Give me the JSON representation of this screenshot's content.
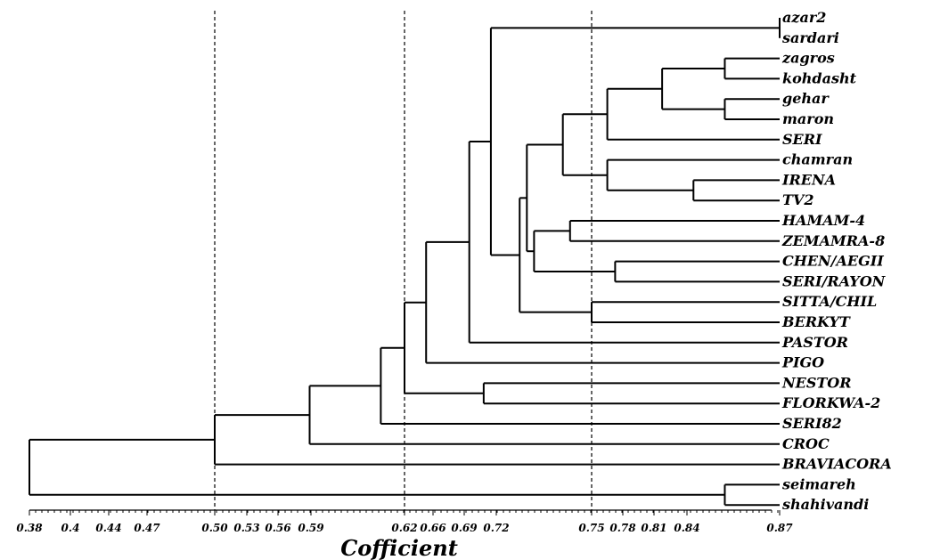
{
  "chart_data": {
    "type": "dendrogram",
    "xlabel": "Cofficient",
    "x_ticks": [
      "0.38",
      "0.4",
      "0.44",
      "0.47",
      "0.50",
      "0.53",
      "0.56",
      "0.59",
      "0.62",
      "0.66",
      "0.69",
      "0.72",
      "0.75",
      "0.78",
      "0.81",
      "0.84",
      "0.87"
    ],
    "cut_lines": [
      0.5,
      0.62,
      0.75
    ],
    "leaves": [
      "azar2",
      "sardari",
      "zagros",
      "kohdasht",
      "gehar",
      "maron",
      "SERI",
      "chamran",
      "IRENA",
      "TV2",
      "HAMAM-4",
      "ZEMAMRA-8",
      "CHEN/AEGII",
      "SERI/RAYON",
      "SITTA/CHIL",
      "BERKYT",
      "PASTOR",
      "PIGO",
      "NESTOR",
      "FLORKWA-2",
      "SERI82",
      "CROC",
      "BRAVIACORA",
      "seimareh",
      "shahivandi"
    ],
    "merges": [
      {
        "id": "m1",
        "a": "azar2",
        "b": "sardari",
        "h": 0.87
      },
      {
        "id": "m2",
        "a": "zagros",
        "b": "kohdasht",
        "h": 0.835
      },
      {
        "id": "m3",
        "a": "gehar",
        "b": "maron",
        "h": 0.835
      },
      {
        "id": "m4",
        "a": "m2",
        "b": "m3",
        "h": 0.795
      },
      {
        "id": "m5",
        "a": "m4",
        "b": "SERI",
        "h": 0.76
      },
      {
        "id": "m6",
        "a": "IRENA",
        "b": "TV2",
        "h": 0.815
      },
      {
        "id": "m7",
        "a": "chamran",
        "b": "m6",
        "h": 0.76
      },
      {
        "id": "m8",
        "a": "m5",
        "b": "m7",
        "h": 0.73
      },
      {
        "id": "m9",
        "a": "HAMAM-4",
        "b": "ZEMAMRA-8",
        "h": 0.735
      },
      {
        "id": "m10",
        "a": "CHEN/AEGII",
        "b": "SERI/RAYON",
        "h": 0.765
      },
      {
        "id": "m11",
        "a": "m9",
        "b": "m10",
        "h": 0.71
      },
      {
        "id": "m12",
        "a": "m8",
        "b": "m11",
        "h": 0.705
      },
      {
        "id": "m13",
        "a": "SITTA/CHIL",
        "b": "BERKYT",
        "h": 0.75
      },
      {
        "id": "m14",
        "a": "m12",
        "b": "m13",
        "h": 0.7
      },
      {
        "id": "m15",
        "a": "m1",
        "b": "m14",
        "h": 0.68
      },
      {
        "id": "m16",
        "a": "m15",
        "b": "PASTOR",
        "h": 0.665
      },
      {
        "id": "m17",
        "a": "m16",
        "b": "PIGO",
        "h": 0.635
      },
      {
        "id": "m18",
        "a": "NESTOR",
        "b": "FLORKWA-2",
        "h": 0.675
      },
      {
        "id": "m19",
        "a": "m17",
        "b": "m18",
        "h": 0.62
      },
      {
        "id": "m20",
        "a": "m19",
        "b": "SERI82",
        "h": 0.605
      },
      {
        "id": "m21",
        "a": "m20",
        "b": "CROC",
        "h": 0.56
      },
      {
        "id": "m22",
        "a": "m21",
        "b": "BRAVIACORA",
        "h": 0.5
      },
      {
        "id": "m23",
        "a": "seimareh",
        "b": "shahivandi",
        "h": 0.835
      },
      {
        "id": "m24",
        "a": "m22",
        "b": "m23",
        "h": 0.38
      }
    ]
  }
}
